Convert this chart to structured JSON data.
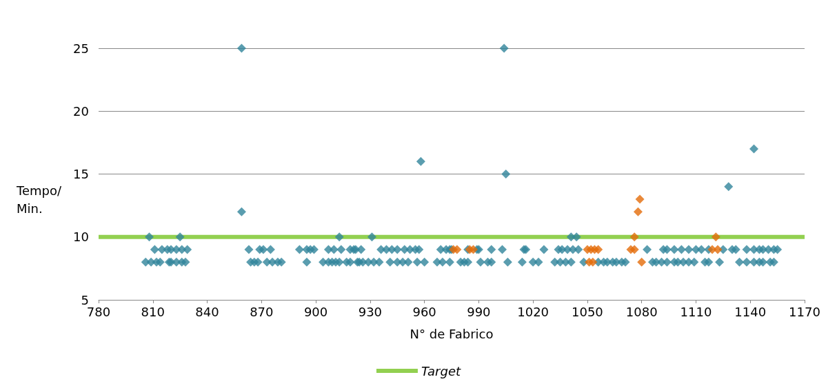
{
  "chart_data": {
    "type": "scatter",
    "xlabel": "N° de Fabrico",
    "ylabel": "Tempo/ Min.",
    "xlim": [
      780,
      1170
    ],
    "xticks": [
      780,
      810,
      840,
      870,
      900,
      930,
      960,
      990,
      1020,
      1050,
      1080,
      1110,
      1140,
      1170
    ],
    "ylim": [
      5,
      25
    ],
    "yticks": [
      5,
      10,
      15,
      20,
      25
    ],
    "grid": "y",
    "legend": "bottom",
    "series": [
      {
        "color": "#31849b",
        "marker": "diamond",
        "x": [
          808,
          825,
          913,
          931,
          1041,
          1044,
          859,
          859,
          958,
          1004,
          1005,
          1128,
          1142,
          811,
          815,
          818,
          820,
          823,
          826,
          829,
          863,
          869,
          871,
          875,
          891,
          895,
          897,
          899,
          907,
          910,
          914,
          919,
          921,
          922,
          925,
          936,
          939,
          942,
          945,
          949,
          952,
          955,
          957,
          969,
          972,
          974,
          975,
          984,
          990,
          989,
          997,
          1003,
          1015,
          1016,
          1026,
          1034,
          1036,
          1039,
          1042,
          1045,
          1083,
          1092,
          1094,
          1098,
          1102,
          1106,
          1110,
          1113,
          1117,
          1125,
          1130,
          1132,
          1138,
          1142,
          1145,
          1147,
          1150,
          1153,
          1155,
          806,
          809,
          812,
          814,
          819,
          820,
          823,
          826,
          828,
          864,
          866,
          868,
          873,
          876,
          879,
          881,
          895,
          904,
          907,
          909,
          911,
          913,
          917,
          919,
          923,
          924,
          926,
          929,
          932,
          935,
          941,
          945,
          948,
          951,
          956,
          960,
          967,
          970,
          974,
          980,
          982,
          984,
          991,
          995,
          997,
          1006,
          1014,
          1020,
          1023,
          1032,
          1035,
          1038,
          1041,
          1048,
          1056,
          1059,
          1061,
          1064,
          1066,
          1069,
          1071,
          1086,
          1088,
          1091,
          1094,
          1098,
          1100,
          1103,
          1106,
          1109,
          1115,
          1117,
          1123,
          1134,
          1138,
          1142,
          1145,
          1147,
          1151,
          1153
        ],
        "values": [
          10,
          10,
          10,
          10,
          10,
          10,
          25,
          12,
          16,
          25,
          15,
          14,
          17,
          9,
          9,
          9,
          9,
          9,
          9,
          9,
          9,
          9,
          9,
          9,
          9,
          9,
          9,
          9,
          9,
          9,
          9,
          9,
          9,
          9,
          9,
          9,
          9,
          9,
          9,
          9,
          9,
          9,
          9,
          9,
          9,
          9,
          9,
          9,
          9,
          9,
          9,
          9,
          9,
          9,
          9,
          9,
          9,
          9,
          9,
          9,
          9,
          9,
          9,
          9,
          9,
          9,
          9,
          9,
          9,
          9,
          9,
          9,
          9,
          9,
          9,
          9,
          9,
          9,
          9,
          8,
          8,
          8,
          8,
          8,
          8,
          8,
          8,
          8,
          8,
          8,
          8,
          8,
          8,
          8,
          8,
          8,
          8,
          8,
          8,
          8,
          8,
          8,
          8,
          8,
          8,
          8,
          8,
          8,
          8,
          8,
          8,
          8,
          8,
          8,
          8,
          8,
          8,
          8,
          8,
          8,
          8,
          8,
          8,
          8,
          8,
          8,
          8,
          8,
          8,
          8,
          8,
          8,
          8,
          8,
          8,
          8,
          8,
          8,
          8,
          8,
          8,
          8,
          8,
          8,
          8,
          8,
          8,
          8,
          8,
          8,
          8,
          8,
          8,
          8,
          8,
          8,
          8,
          8,
          8
        ]
      },
      {
        "color": "#e36c09",
        "marker": "diamond",
        "x": [
          1076,
          1121,
          1079,
          1078,
          976,
          978,
          985,
          987,
          1050,
          1052,
          1054,
          1056,
          1074,
          1076,
          1119,
          1122,
          1051,
          1053,
          1080
        ],
        "values": [
          10,
          10,
          13,
          12,
          9,
          9,
          9,
          9,
          9,
          9,
          9,
          9,
          9,
          9,
          9,
          9,
          8,
          8,
          8
        ]
      },
      {
        "type": "line",
        "name": "Target",
        "color": "#92d050",
        "marker": "none",
        "x": [
          780,
          1170
        ],
        "values": [
          10,
          10
        ]
      }
    ]
  }
}
